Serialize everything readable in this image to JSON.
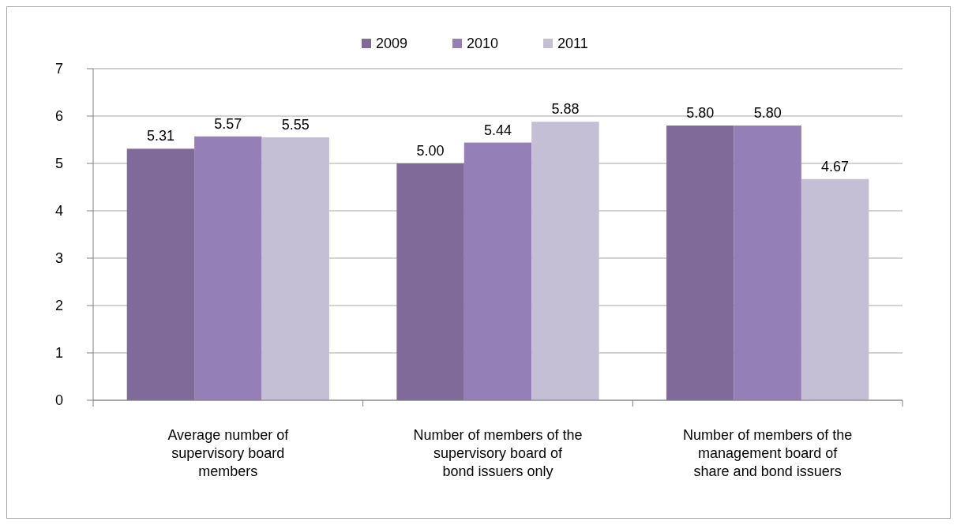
{
  "chart_data": {
    "type": "bar",
    "categories": [
      "Average number of supervisory board members",
      "Number of members of the supervisory board of bond issuers only",
      "Number of members of the management board of share and bond issuers"
    ],
    "series": [
      {
        "name": "2009",
        "color": "#7f6a9a",
        "values": [
          5.31,
          5.0,
          5.8
        ],
        "value_labels": [
          "5.31",
          "5.00",
          "5.80"
        ]
      },
      {
        "name": "2010",
        "color": "#957fb7",
        "values": [
          5.57,
          5.44,
          5.8
        ],
        "value_labels": [
          "5.57",
          "5.44",
          "5.80"
        ]
      },
      {
        "name": "2011",
        "color": "#c5bfd6",
        "values": [
          5.55,
          5.88,
          4.67
        ],
        "value_labels": [
          "5.55",
          "5.88",
          "4.67"
        ]
      }
    ],
    "ylim": [
      0,
      7
    ],
    "yticks": [
      0,
      1,
      2,
      3,
      4,
      5,
      6,
      7
    ],
    "grid": "y",
    "legend": "top"
  }
}
